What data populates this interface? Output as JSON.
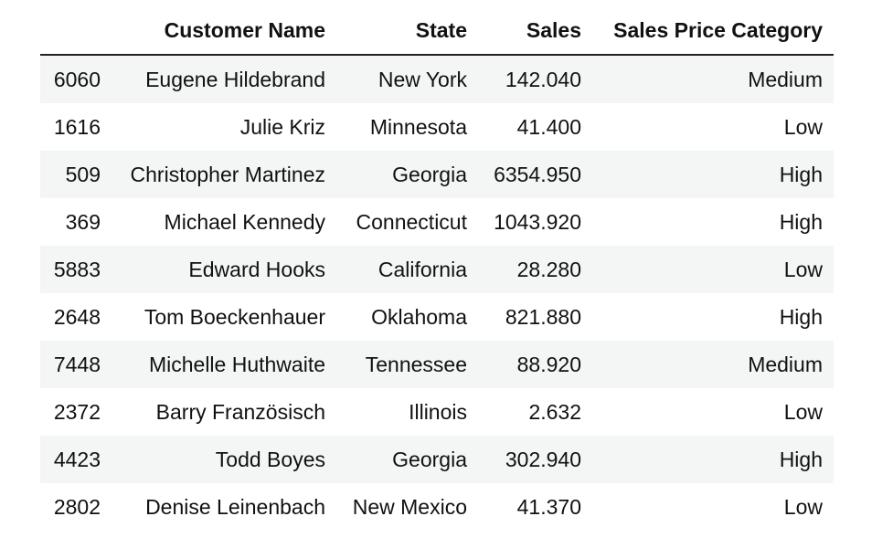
{
  "table": {
    "columns": [
      "",
      "Customer Name",
      "State",
      "Sales",
      "Sales Price Category"
    ],
    "rows": [
      {
        "index": "6060",
        "customer_name": "Eugene Hildebrand",
        "state": "New York",
        "sales": "142.040",
        "category": "Medium"
      },
      {
        "index": "1616",
        "customer_name": "Julie Kriz",
        "state": "Minnesota",
        "sales": "41.400",
        "category": "Low"
      },
      {
        "index": "509",
        "customer_name": "Christopher Martinez",
        "state": "Georgia",
        "sales": "6354.950",
        "category": "High"
      },
      {
        "index": "369",
        "customer_name": "Michael Kennedy",
        "state": "Connecticut",
        "sales": "1043.920",
        "category": "High"
      },
      {
        "index": "5883",
        "customer_name": "Edward Hooks",
        "state": "California",
        "sales": "28.280",
        "category": "Low"
      },
      {
        "index": "2648",
        "customer_name": "Tom Boeckenhauer",
        "state": "Oklahoma",
        "sales": "821.880",
        "category": "High"
      },
      {
        "index": "7448",
        "customer_name": "Michelle Huthwaite",
        "state": "Tennessee",
        "sales": "88.920",
        "category": "Medium"
      },
      {
        "index": "2372",
        "customer_name": "Barry Französisch",
        "state": "Illinois",
        "sales": "2.632",
        "category": "Low"
      },
      {
        "index": "4423",
        "customer_name": "Todd Boyes",
        "state": "Georgia",
        "sales": "302.940",
        "category": "High"
      },
      {
        "index": "2802",
        "customer_name": "Denise Leinenbach",
        "state": "New Mexico",
        "sales": "41.370",
        "category": "Low"
      }
    ]
  }
}
